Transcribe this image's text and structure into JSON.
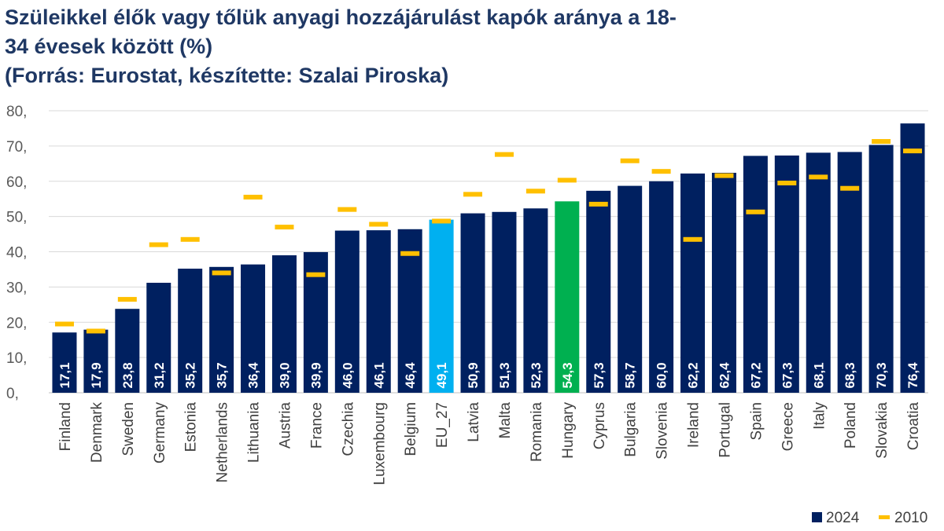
{
  "title_lines": [
    "Szüleikkel élők vagy tőlük anyagi hozzájárulást kapók aránya a 18-",
    "34 évesek között (%)",
    "(Forrás: Eurostat, készítette: Szalai Piroska)"
  ],
  "chart_data": {
    "type": "bar",
    "title": "Szüleikkel élők vagy tőlük anyagi hozzájárulást kapók aránya a 18-34 évesek között (%)",
    "categories": [
      "Finland",
      "Denmark",
      "Sweden",
      "Germany",
      "Estonia",
      "Netherlands",
      "Lithuania",
      "Austria",
      "France",
      "Czechia",
      "Luxembourg",
      "Belgium",
      "EU_27",
      "Latvia",
      "Malta",
      "Romania",
      "Hungary",
      "Cyprus",
      "Bulgaria",
      "Slovenia",
      "Ireland",
      "Portugal",
      "Spain",
      "Greece",
      "Italy",
      "Poland",
      "Slovakia",
      "Croatia"
    ],
    "series": [
      {
        "name": "2024",
        "type": "bar",
        "values": [
          17.1,
          17.9,
          23.8,
          31.2,
          35.2,
          35.7,
          36.4,
          39.0,
          39.9,
          46.0,
          46.1,
          46.4,
          49.1,
          50.9,
          51.3,
          52.3,
          54.3,
          57.3,
          58.7,
          60.0,
          62.2,
          62.4,
          67.2,
          67.3,
          68.1,
          68.3,
          70.3,
          76.4
        ],
        "labels": [
          "17,1",
          "17,9",
          "23,8",
          "31,2",
          "35,2",
          "35,7",
          "36,4",
          "39,0",
          "39,9",
          "46,0",
          "46,1",
          "46,4",
          "49,1",
          "50,9",
          "51,3",
          "52,3",
          "54,3",
          "57,3",
          "58,7",
          "60,0",
          "62,2",
          "62,4",
          "67,2",
          "67,3",
          "68,1",
          "68,3",
          "70,3",
          "76,4"
        ]
      },
      {
        "name": "2010",
        "type": "marker",
        "values": [
          19.5,
          17.5,
          26.5,
          42.0,
          43.5,
          34.0,
          55.5,
          47.0,
          33.5,
          52.0,
          47.8,
          39.5,
          48.7,
          56.3,
          67.6,
          57.2,
          60.3,
          53.5,
          65.8,
          62.8,
          43.5,
          61.6,
          51.3,
          59.5,
          61.2,
          58.0,
          71.3,
          68.6
        ]
      }
    ],
    "highlight_colors": {
      "EU_27": "#00b0f0",
      "Hungary": "#00b050"
    },
    "colors": {
      "bar": "#002060",
      "marker": "#ffc000"
    },
    "ylim": [
      0,
      80
    ],
    "yticks": [
      "0,",
      "10,",
      "20,",
      "30,",
      "40,",
      "50,",
      "60,",
      "70,",
      "80,"
    ],
    "grid": true,
    "legend_position": "bottom-right"
  }
}
